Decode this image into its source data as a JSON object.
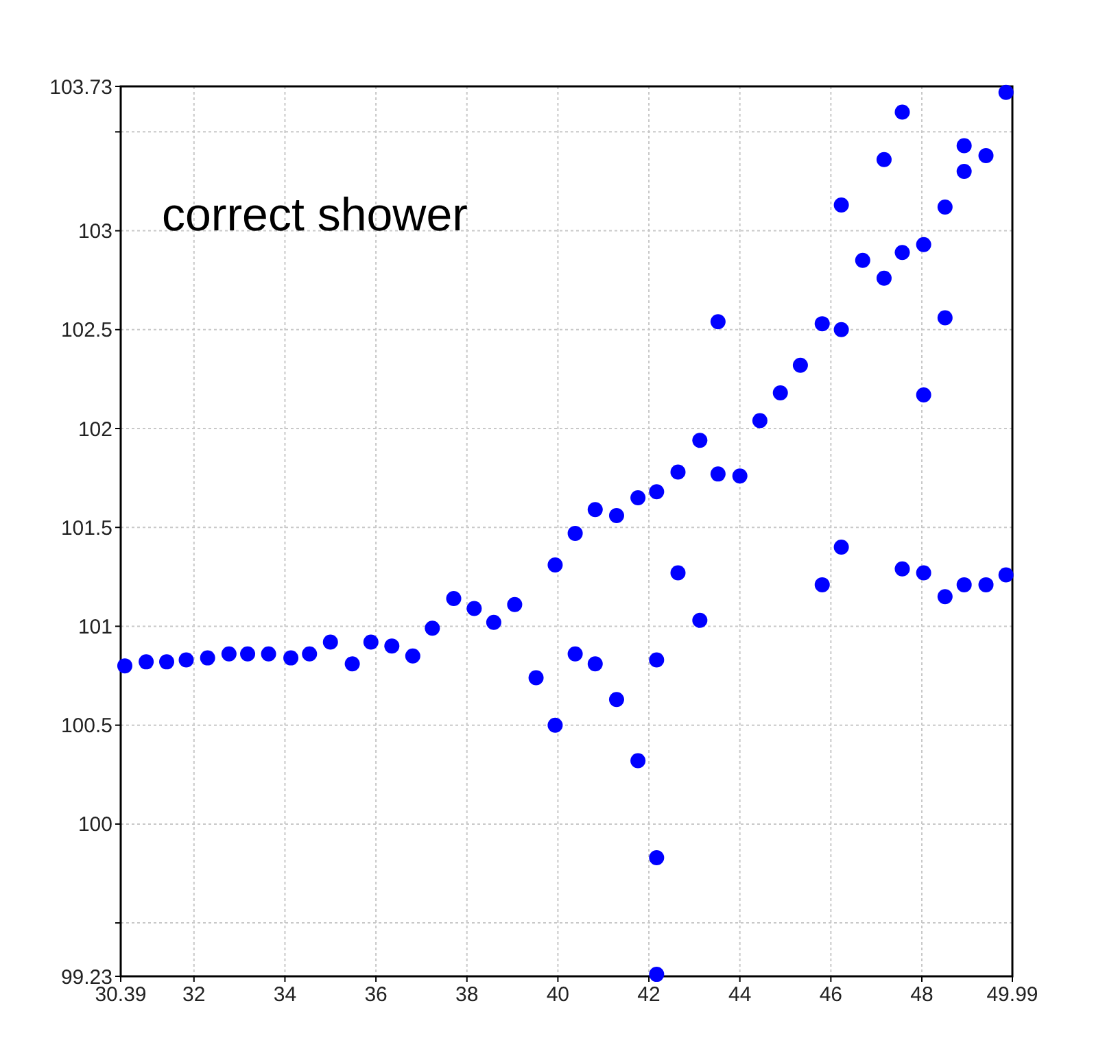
{
  "chart_data": {
    "type": "scatter",
    "annotations": [
      "correct shower"
    ],
    "xlim": [
      30.39,
      49.99
    ],
    "ylim": [
      99.23,
      103.73
    ],
    "xticks": [
      30.39,
      32,
      34,
      36,
      38,
      40,
      42,
      44,
      46,
      48,
      49.99
    ],
    "yticks": [
      99.23,
      {
        "value": 99.5,
        "label": null
      },
      100,
      100.5,
      101,
      101.5,
      102,
      102.5,
      103,
      {
        "value": 103.5,
        "label": null
      },
      103.73
    ],
    "grid": true,
    "marker": "circle",
    "series": [
      {
        "color": "#0000ff",
        "x": [
          30.48,
          30.95,
          31.4,
          31.83,
          32.3,
          32.77,
          33.18,
          33.64,
          34.13,
          34.54,
          35,
          35.48,
          35.89,
          36.35,
          36.81,
          37.24,
          37.71,
          38.16,
          38.59,
          39.05,
          39.52,
          39.94,
          39.94,
          40.38,
          40.38,
          40.82,
          40.82,
          41.29,
          41.29,
          41.76,
          41.76,
          42.17,
          42.17,
          42.17,
          42.17,
          42.64,
          42.64,
          43.12,
          43.12,
          43.52,
          43.52,
          44,
          44.44,
          44.89,
          45.33,
          45.81,
          45.81,
          46.23,
          46.23,
          46.23,
          46.7,
          47.17,
          47.17,
          47.57,
          47.57,
          47.57,
          48.04,
          48.04,
          48.04,
          48.51,
          48.51,
          48.51,
          48.93,
          48.93,
          48.93,
          49.41,
          49.41,
          49.85,
          49.85
        ],
        "values": [
          100.8,
          100.82,
          100.82,
          100.83,
          100.84,
          100.86,
          100.86,
          100.86,
          100.84,
          100.86,
          100.92,
          100.81,
          100.92,
          100.9,
          100.85,
          100.99,
          101.14,
          101.09,
          101.02,
          101.11,
          100.74,
          101.31,
          100.5,
          100.86,
          101.47,
          101.59,
          100.81,
          101.56,
          100.63,
          101.65,
          100.32,
          101.68,
          100.83,
          99.83,
          99.24,
          101.78,
          101.27,
          101.94,
          101.03,
          101.77,
          102.54,
          101.76,
          102.04,
          102.18,
          102.32,
          102.53,
          101.21,
          103.13,
          102.5,
          101.4,
          102.85,
          103.36,
          102.76,
          103.6,
          102.89,
          101.29,
          102.93,
          102.17,
          101.27,
          103.12,
          102.56,
          101.15,
          103.43,
          103.3,
          101.21,
          103.38,
          101.21,
          103.7,
          101.26
        ]
      }
    ]
  }
}
